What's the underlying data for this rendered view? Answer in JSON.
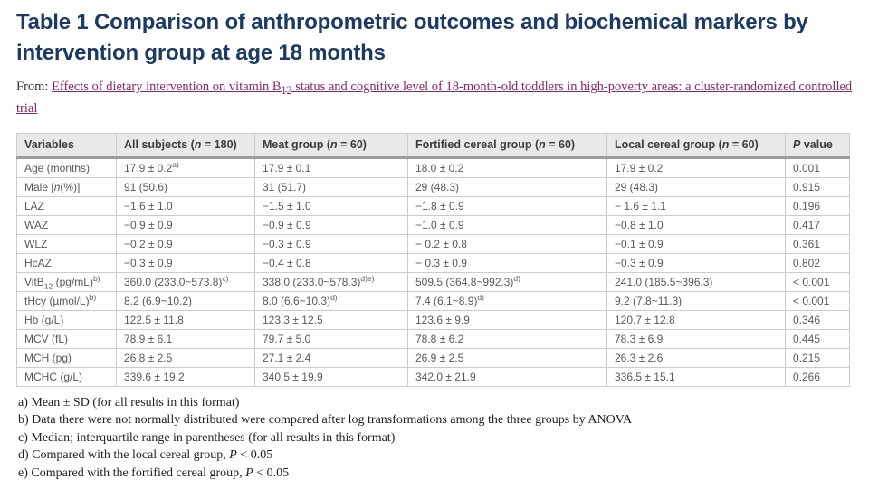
{
  "title": "Table 1 Comparison of anthropometric outcomes and biochemical markers by intervention group at age 18 months",
  "from_label": "From: ",
  "article_link": "Effects of dietary intervention on vitamin B~{12} status and cognitive level of 18-month-old toddlers in high-poverty areas: a cluster-randomized controlled trial",
  "table": {
    "columns": [
      "Variables",
      "All subjects (*{n} = 180)",
      "Meat group (*{n} = 60)",
      "Fortified cereal group (*{n} = 60)",
      "Local cereal group (*{n} = 60)",
      "*{P} value"
    ],
    "rows": [
      [
        "Age (months)",
        "17.9 ± 0.2^{a)}",
        "17.9 ± 0.1",
        "18.0 ± 0.2",
        "17.9 ± 0.2",
        "0.001"
      ],
      [
        "Male [*{n}(%)]",
        "91 (50.6)",
        "31 (51.7)",
        "29 (48.3)",
        "29 (48.3)",
        "0.915"
      ],
      [
        "LAZ",
        "−1.6 ± 1.0",
        "−1.5 ± 1.0",
        "−1.8 ± 0.9",
        "− 1.6 ± 1.1",
        "0.196"
      ],
      [
        "WAZ",
        "−0.9 ± 0.9",
        "−0.9 ± 0.9",
        "−1.0 ± 0.9",
        "−0.8 ± 1.0",
        "0.417"
      ],
      [
        "WLZ",
        "−0.2 ± 0.9",
        "−0.3 ± 0.9",
        "− 0.2 ± 0.8",
        "−0.1 ± 0.9",
        "0.361"
      ],
      [
        "HcAZ",
        "−0.3 ± 0.9",
        "−0.4 ± 0.8",
        "− 0.3 ± 0.9",
        "−0.3 ± 0.9",
        "0.802"
      ],
      [
        "VitB~{12} (pg/mL)^{b)}",
        "360.0 (233.0~573.8)^{c)}",
        "338.0 (233.0~578.3)^{d)e)}",
        "509.5 (364.8~992.3)^{d)}",
        "241.0 (185.5~396.3)",
        "< 0.001"
      ],
      [
        "tHcy (µmol/L)^{b)}",
        "8.2 (6.9~10.2)",
        "8.0 (6.6~10.3)^{d)}",
        "7.4 (6.1~8.9)^{d)}",
        "9.2 (7.8~11.3)",
        "< 0.001"
      ],
      [
        "Hb (g/L)",
        "122.5 ± 11.8",
        "123.3 ± 12.5",
        "123.6 ± 9.9",
        "120.7 ± 12.8",
        "0.346"
      ],
      [
        "MCV (fL)",
        "78.9 ± 6.1",
        "79.7 ± 5.0",
        "78.8 ± 6.2",
        "78.3 ± 6.9",
        "0.445"
      ],
      [
        "MCH (pg)",
        "26.8 ± 2.5",
        "27.1 ± 2.4",
        "26.9 ± 2.5",
        "26.3 ± 2.6",
        "0.215"
      ],
      [
        "MCHC (g/L)",
        "339.6 ± 19.2",
        "340.5 ± 19.9",
        "342.0 ± 21.9",
        "336.5 ± 15.1",
        "0.266"
      ]
    ]
  },
  "footnotes": [
    "a) Mean ± SD (for all results in this format)",
    "b) Data there were not normally distributed were compared after log transformations among the three groups by ANOVA",
    "c) Median; interquartile range in parentheses (for all results in this format)",
    "d) Compared with the local cereal group, *{P} < 0.05",
    "e) Compared with the fortified cereal group, *{P} < 0.05"
  ],
  "colors": {
    "title": "#1c3a64",
    "link": "#87295e",
    "header_bg": "#e9e9e9",
    "header_text": "#3c3c3c",
    "cell_text": "#595959",
    "border": "#cccccc",
    "header_divider": "#9d9d9d",
    "footnote_text": "#1f1f1f",
    "from_text": "#333333"
  }
}
